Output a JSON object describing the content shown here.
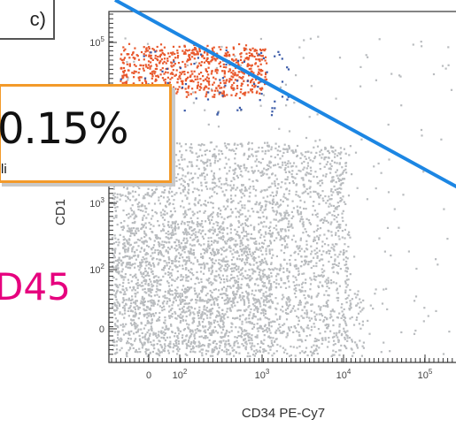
{
  "panel_label": "c)",
  "callout": {
    "percent": "0.15%",
    "subtext": "li"
  },
  "marker_label": "D45",
  "chart_data": {
    "type": "scatter",
    "title": "",
    "xlabel": "CD34 PE-Cy7",
    "ylabel": "CD1",
    "x_ticks": [
      "0",
      "10^2",
      "10^3",
      "10^4",
      "10^5"
    ],
    "y_ticks": [
      "0",
      "10^2",
      "10^3",
      "10^5"
    ],
    "x_scale": "biexponential",
    "y_scale": "biexponential",
    "grid": false,
    "series": [
      {
        "color": "#b9bcbf",
        "description": "main population (grey events)"
      },
      {
        "color": "#e8582c",
        "description": "gated population (orange events)"
      },
      {
        "color": "#3a5aa8",
        "description": "scattered blue events"
      }
    ],
    "gate_line": {
      "color": "#1c86e3"
    },
    "colors": {
      "grey": "#b9bcbf",
      "orange": "#e8582c",
      "blue": "#3a5aa8",
      "gate": "#1c86e3",
      "callout_border": "#f39a2a",
      "marker": "#e6007e"
    }
  }
}
